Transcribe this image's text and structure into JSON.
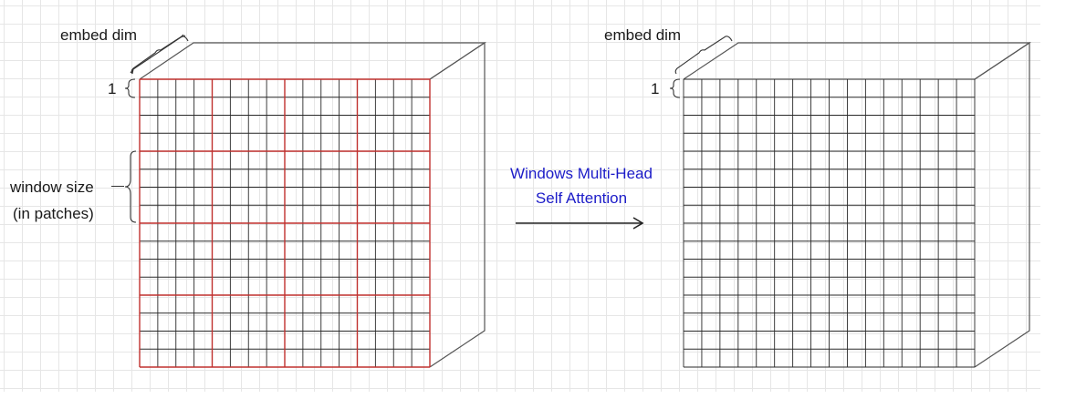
{
  "left_block": {
    "embed_label": "embed dim",
    "one_label": "1",
    "window_label_line1": "window size",
    "window_label_line2": "(in patches)"
  },
  "arrow": {
    "line1": "Windows Multi-Head",
    "line2": "Self Attention"
  },
  "right_block": {
    "embed_label": "embed dim",
    "one_label": "1"
  },
  "colors": {
    "window_grid": "#c0302e",
    "patch_grid": "#2a2a2a",
    "cube_edge": "#555555",
    "arrow_text": "#1c1cc8"
  },
  "grid": {
    "patches_per_side": 16,
    "windows_per_side": 4
  }
}
